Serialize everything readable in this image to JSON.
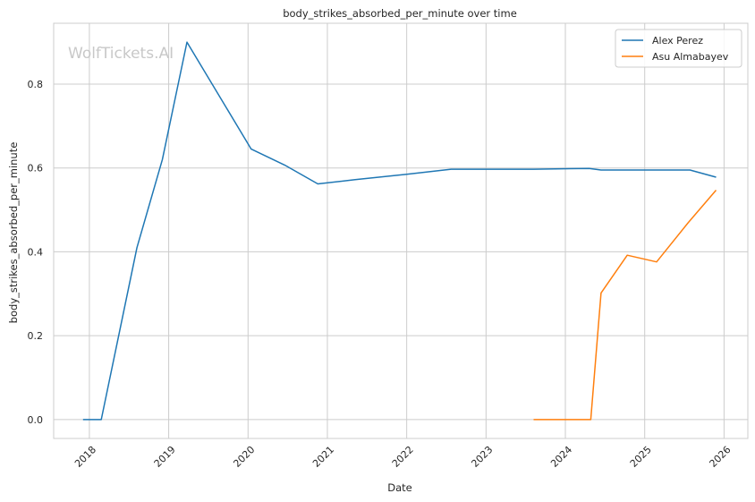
{
  "chart_data": {
    "type": "line",
    "title": "body_strikes_absorbed_per_minute over time",
    "xlabel": "Date",
    "ylabel": "body_strikes_absorbed_per_minute",
    "watermark": "WolfTickets.AI",
    "xlim": [
      2017.55,
      2026.3
    ],
    "ylim": [
      -0.045,
      0.945
    ],
    "x_ticks": [
      2018,
      2019,
      2020,
      2021,
      2022,
      2023,
      2024,
      2025,
      2026
    ],
    "x_tick_labels": [
      "2018",
      "2019",
      "2020",
      "2021",
      "2022",
      "2023",
      "2024",
      "2025",
      "2026"
    ],
    "y_ticks": [
      0.0,
      0.2,
      0.4,
      0.6,
      0.8
    ],
    "y_tick_labels": [
      "0.0",
      "0.2",
      "0.4",
      "0.6",
      "0.8"
    ],
    "grid": true,
    "legend_position": "top-right",
    "series": [
      {
        "name": "Alex Perez",
        "color": "#1f77b4",
        "points": [
          [
            2017.92,
            0.0
          ],
          [
            2018.15,
            0.0
          ],
          [
            2018.6,
            0.41
          ],
          [
            2018.92,
            0.62
          ],
          [
            2019.23,
            0.9
          ],
          [
            2020.04,
            0.645
          ],
          [
            2020.46,
            0.607
          ],
          [
            2020.88,
            0.562
          ],
          [
            2021.35,
            0.572
          ],
          [
            2022.0,
            0.585
          ],
          [
            2022.56,
            0.597
          ],
          [
            2023.6,
            0.597
          ],
          [
            2024.3,
            0.599
          ],
          [
            2024.45,
            0.595
          ],
          [
            2025.57,
            0.595
          ],
          [
            2025.9,
            0.578
          ]
        ]
      },
      {
        "name": "Asu Almabayev",
        "color": "#ff7f0e",
        "points": [
          [
            2023.6,
            0.0
          ],
          [
            2024.32,
            0.0
          ],
          [
            2024.45,
            0.302
          ],
          [
            2024.78,
            0.392
          ],
          [
            2025.15,
            0.376
          ],
          [
            2025.55,
            0.47
          ],
          [
            2025.9,
            0.547
          ]
        ]
      }
    ]
  }
}
